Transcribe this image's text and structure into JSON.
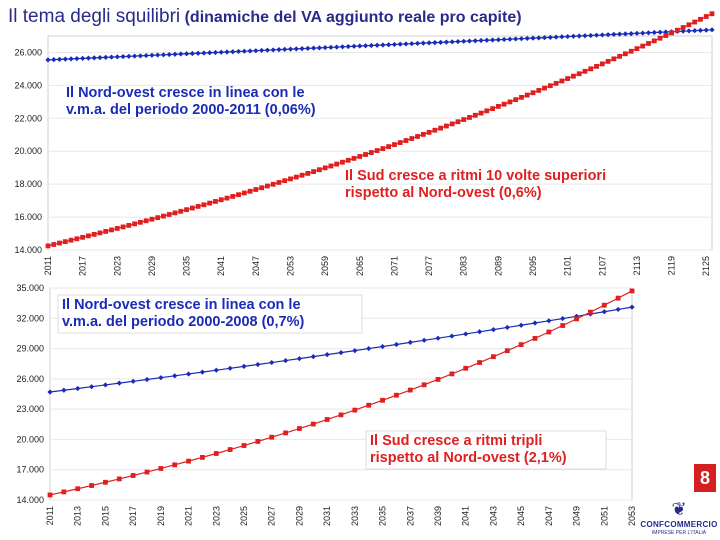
{
  "title": {
    "main": "Il tema degli squilibri",
    "sub": "(dinamiche del VA aggiunto reale pro capite)"
  },
  "colors": {
    "north": "#1a2bb8",
    "south": "#e02020",
    "title": "#2a2a8a",
    "grid": "#e8e8e8"
  },
  "page_number": "8",
  "logo": {
    "name": "CONFCOMMERCIO",
    "tagline": "IMPRESE PER L'ITALIA",
    "crest_icon": "eagle-crest-icon"
  },
  "chart_data": [
    {
      "type": "line",
      "title": "",
      "xlabel": "",
      "ylabel": "",
      "ylim": [
        14000,
        27000
      ],
      "yticks": [
        "14.000",
        "16.000",
        "18.000",
        "20.000",
        "22.000",
        "24.000",
        "26.000"
      ],
      "ytick_values": [
        14000,
        16000,
        18000,
        20000,
        22000,
        24000,
        26000
      ],
      "xticks": [
        "2011",
        "2017",
        "2023",
        "2029",
        "2035",
        "2041",
        "2047",
        "2053",
        "2059",
        "2065",
        "2071",
        "2077",
        "2083",
        "2089",
        "2095",
        "2101",
        "2107",
        "2113",
        "2119",
        "2125"
      ],
      "x_range": [
        2011,
        2126
      ],
      "series": [
        {
          "name": "Nord-ovest",
          "marker": "diamond",
          "start": 25550,
          "rate": 0.0006
        },
        {
          "name": "Sud",
          "marker": "square",
          "start": 14250,
          "rate": 0.006
        }
      ],
      "annotations": [
        {
          "lines": [
            "Il Nord-ovest cresce in linea con le",
            "v.m.a. del periodo 2000-2011 (0,06%)"
          ],
          "color": "#1a2bb8"
        },
        {
          "lines": [
            "Il Sud cresce a ritmi 10 volte superiori",
            "rispetto al Nord-ovest (0,6%)"
          ],
          "color": "#e02020"
        }
      ]
    },
    {
      "type": "line",
      "title": "",
      "xlabel": "",
      "ylabel": "",
      "ylim": [
        14000,
        35000
      ],
      "yticks": [
        "14.000",
        "17.000",
        "20.000",
        "23.000",
        "26.000",
        "29.000",
        "32.000",
        "35.000"
      ],
      "ytick_values": [
        14000,
        17000,
        20000,
        23000,
        26000,
        29000,
        32000,
        35000
      ],
      "xticks": [
        "2011",
        "2013",
        "2015",
        "2017",
        "2019",
        "2021",
        "2023",
        "2025",
        "2027",
        "2029",
        "2031",
        "2033",
        "2035",
        "2037",
        "2039",
        "2041",
        "2043",
        "2045",
        "2047",
        "2049",
        "2051",
        "2053"
      ],
      "x_range": [
        2011,
        2053
      ],
      "series": [
        {
          "name": "Nord-ovest",
          "marker": "diamond",
          "start": 24700,
          "rate": 0.007
        },
        {
          "name": "Sud",
          "marker": "square",
          "start": 14500,
          "rate": 0.021
        }
      ],
      "annotations": [
        {
          "lines": [
            "Il Nord-ovest cresce in linea con le",
            "v.m.a. del periodo 2000-2008 (0,7%)"
          ],
          "color": "#1a2bb8"
        },
        {
          "lines": [
            "Il Sud cresce a ritmi tripli",
            "rispetto al Nord-ovest (2,1%)"
          ],
          "color": "#e02020"
        }
      ]
    }
  ]
}
